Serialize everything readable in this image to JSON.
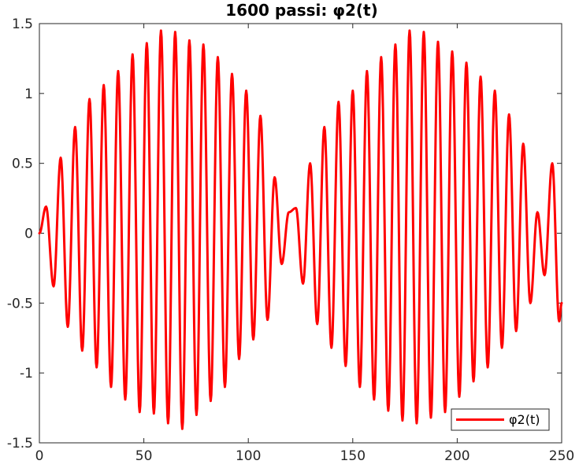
{
  "chart_data": {
    "type": "line",
    "title": "1600 passi: φ2(t)",
    "xlabel": "",
    "ylabel": "",
    "xlim": [
      0,
      250
    ],
    "ylim": [
      -1.5,
      1.5
    ],
    "x_ticks": [
      0,
      50,
      100,
      150,
      200,
      250
    ],
    "x_tick_labels": [
      "0",
      "50",
      "100",
      "150",
      "200",
      "250"
    ],
    "y_ticks": [
      -1.5,
      -1,
      -0.5,
      0,
      0.5,
      1,
      1.5
    ],
    "y_tick_labels": [
      "-1.5",
      "-1",
      "-0.5",
      "0",
      "0.5",
      "1",
      "1.5"
    ],
    "grid": false,
    "legend_position": "bottom-right",
    "series": [
      {
        "name": "φ2(t)",
        "color": "#ff0000",
        "points": [
          [
            0,
            0
          ],
          [
            3.2,
            0.19
          ],
          [
            6.8,
            -0.38
          ],
          [
            10.2,
            0.54
          ],
          [
            13.6,
            -0.67
          ],
          [
            17.1,
            0.76
          ],
          [
            20.5,
            -0.84
          ],
          [
            24,
            0.96
          ],
          [
            27.4,
            -0.96
          ],
          [
            30.8,
            1.06
          ],
          [
            34.3,
            -1.1
          ],
          [
            37.7,
            1.16
          ],
          [
            41.1,
            -1.19
          ],
          [
            44.6,
            1.28
          ],
          [
            48,
            -1.28
          ],
          [
            51.4,
            1.36
          ],
          [
            54.8,
            -1.29
          ],
          [
            58.2,
            1.45
          ],
          [
            61.6,
            -1.36
          ],
          [
            65,
            1.44
          ],
          [
            68.4,
            -1.4
          ],
          [
            71.8,
            1.38
          ],
          [
            75.2,
            -1.3
          ],
          [
            78.5,
            1.35
          ],
          [
            82,
            -1.2
          ],
          [
            85.4,
            1.26
          ],
          [
            88.8,
            -1.1
          ],
          [
            92.2,
            1.14
          ],
          [
            95.6,
            -0.9
          ],
          [
            99,
            1.02
          ],
          [
            102.4,
            -0.76
          ],
          [
            105.8,
            0.84
          ],
          [
            109.2,
            -0.62
          ],
          [
            112.6,
            0.4
          ],
          [
            116,
            -0.22
          ],
          [
            119.4,
            0.15
          ],
          [
            122.8,
            0.18
          ],
          [
            126.2,
            -0.36
          ],
          [
            129.6,
            0.5
          ],
          [
            133,
            -0.65
          ],
          [
            136.4,
            0.76
          ],
          [
            139.8,
            -0.82
          ],
          [
            143.2,
            0.94
          ],
          [
            146.6,
            -0.95
          ],
          [
            150,
            1.02
          ],
          [
            153.4,
            -1.1
          ],
          [
            156.8,
            1.16
          ],
          [
            160.2,
            -1.19
          ],
          [
            163.6,
            1.26
          ],
          [
            167,
            -1.27
          ],
          [
            170.4,
            1.35
          ],
          [
            173.8,
            -1.34
          ],
          [
            177.2,
            1.45
          ],
          [
            180.6,
            -1.36
          ],
          [
            184,
            1.44
          ],
          [
            187.4,
            -1.32
          ],
          [
            190.8,
            1.37
          ],
          [
            194.2,
            -1.28
          ],
          [
            197.6,
            1.3
          ],
          [
            201,
            -1.17
          ],
          [
            204.4,
            1.22
          ],
          [
            207.8,
            -1.06
          ],
          [
            211.2,
            1.12
          ],
          [
            214.6,
            -0.96
          ],
          [
            218,
            1.02
          ],
          [
            221.4,
            -0.82
          ],
          [
            224.8,
            0.85
          ],
          [
            228.2,
            -0.7
          ],
          [
            231.6,
            0.64
          ],
          [
            235,
            -0.5
          ],
          [
            238.4,
            0.15
          ],
          [
            241.8,
            -0.3
          ],
          [
            245.5,
            0.5
          ],
          [
            248.8,
            -0.63
          ],
          [
            250,
            -0.5
          ]
        ]
      }
    ]
  }
}
